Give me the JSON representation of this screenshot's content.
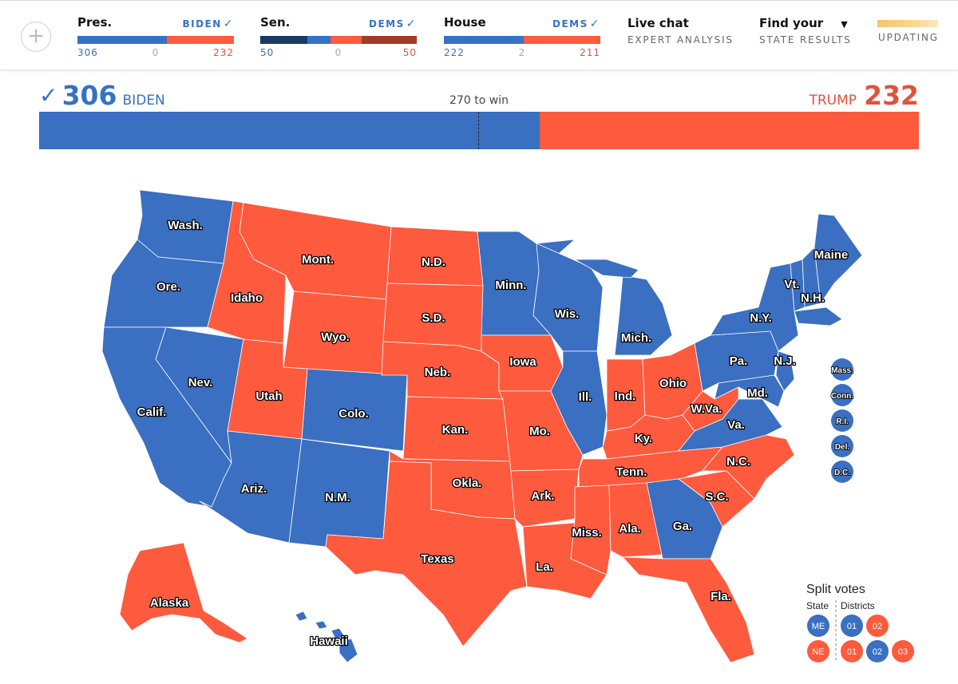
{
  "topbar": {
    "add_icon": "plus-icon",
    "races": [
      {
        "label": "Pres.",
        "winner": "BIDEN",
        "dem": "306",
        "mid": "0",
        "rep": "232",
        "segments": [
          {
            "color": "#3572c4",
            "share": 0.569
          },
          {
            "color": "#fd5a3e",
            "share": 0.431
          }
        ]
      },
      {
        "label": "Sen.",
        "winner": "DEMS",
        "dem": "50",
        "mid": "0",
        "rep": "50",
        "segments": [
          {
            "color": "#1b3a63",
            "share": 0.3
          },
          {
            "color": "#3572c4",
            "share": 0.15
          },
          {
            "color": "#fd5a3e",
            "share": 0.2
          },
          {
            "color": "#a33a2a",
            "share": 0.35
          }
        ]
      },
      {
        "label": "House",
        "winner": "DEMS",
        "dem": "222",
        "mid": "2",
        "rep": "211",
        "segments": [
          {
            "color": "#3572c4",
            "share": 0.51
          },
          {
            "color": "#fd5a3e",
            "share": 0.49
          }
        ]
      }
    ],
    "live_chat": {
      "title": "Live chat",
      "sub": "EXPERT ANALYSIS"
    },
    "find": {
      "title": "Find your",
      "sub": "STATE RESULTS"
    },
    "updating": "UPDATING"
  },
  "electoral": {
    "dem_votes": "306",
    "dem_name": "BIDEN",
    "rep_votes": "232",
    "rep_name": "TRUMP",
    "threshold": "270 to win",
    "dem_share": 0.5688,
    "rep_share": 0.4312
  },
  "colors": {
    "dem": "#3a6fc1",
    "rep": "#fd5a3e"
  },
  "map": {
    "states": [
      {
        "name": "Wash.",
        "winner": "dem"
      },
      {
        "name": "Ore.",
        "winner": "dem"
      },
      {
        "name": "Calif.",
        "winner": "dem"
      },
      {
        "name": "Nev.",
        "winner": "dem"
      },
      {
        "name": "Idaho",
        "winner": "rep"
      },
      {
        "name": "Mont.",
        "winner": "rep"
      },
      {
        "name": "Wyo.",
        "winner": "rep"
      },
      {
        "name": "Utah",
        "winner": "rep"
      },
      {
        "name": "Colo.",
        "winner": "dem"
      },
      {
        "name": "Ariz.",
        "winner": "dem"
      },
      {
        "name": "N.M.",
        "winner": "dem"
      },
      {
        "name": "N.D.",
        "winner": "rep"
      },
      {
        "name": "S.D.",
        "winner": "rep"
      },
      {
        "name": "Neb.",
        "winner": "rep"
      },
      {
        "name": "Kan.",
        "winner": "rep"
      },
      {
        "name": "Okla.",
        "winner": "rep"
      },
      {
        "name": "Texas",
        "winner": "rep"
      },
      {
        "name": "Minn.",
        "winner": "dem"
      },
      {
        "name": "Iowa",
        "winner": "rep"
      },
      {
        "name": "Mo.",
        "winner": "rep"
      },
      {
        "name": "Ark.",
        "winner": "rep"
      },
      {
        "name": "La.",
        "winner": "rep"
      },
      {
        "name": "Wis.",
        "winner": "dem"
      },
      {
        "name": "Ill.",
        "winner": "dem"
      },
      {
        "name": "Mich.",
        "winner": "dem"
      },
      {
        "name": "Ind.",
        "winner": "rep"
      },
      {
        "name": "Ohio",
        "winner": "rep"
      },
      {
        "name": "Ky.",
        "winner": "rep"
      },
      {
        "name": "Tenn.",
        "winner": "rep"
      },
      {
        "name": "Miss.",
        "winner": "rep"
      },
      {
        "name": "Ala.",
        "winner": "rep"
      },
      {
        "name": "Ga.",
        "winner": "dem"
      },
      {
        "name": "Fla.",
        "winner": "rep"
      },
      {
        "name": "S.C.",
        "winner": "rep"
      },
      {
        "name": "N.C.",
        "winner": "rep"
      },
      {
        "name": "Va.",
        "winner": "dem"
      },
      {
        "name": "W.Va.",
        "winner": "rep"
      },
      {
        "name": "Pa.",
        "winner": "dem"
      },
      {
        "name": "N.Y.",
        "winner": "dem"
      },
      {
        "name": "Vt.",
        "winner": "dem"
      },
      {
        "name": "N.H.",
        "winner": "dem"
      },
      {
        "name": "Maine",
        "winner": "dem"
      },
      {
        "name": "N.J.",
        "winner": "dem"
      },
      {
        "name": "Md.",
        "winner": "dem"
      },
      {
        "name": "Alaska",
        "winner": "rep"
      },
      {
        "name": "Hawaii",
        "winner": "dem"
      }
    ],
    "small_states": [
      {
        "name": "Mass.",
        "winner": "dem"
      },
      {
        "name": "Conn.",
        "winner": "dem"
      },
      {
        "name": "R.I.",
        "winner": "dem"
      },
      {
        "name": "Del.",
        "winner": "dem"
      },
      {
        "name": "D.C.",
        "winner": "dem"
      }
    ],
    "split": {
      "title": "Split votes",
      "state_label": "State",
      "districts_label": "Districts",
      "rows": [
        {
          "state": "ME",
          "state_winner": "dem",
          "districts": [
            {
              "label": "01",
              "winner": "dem"
            },
            {
              "label": "02",
              "winner": "rep"
            }
          ]
        },
        {
          "state": "NE",
          "state_winner": "rep",
          "districts": [
            {
              "label": "01",
              "winner": "rep"
            },
            {
              "label": "02",
              "winner": "dem"
            },
            {
              "label": "03",
              "winner": "rep"
            }
          ]
        }
      ]
    }
  }
}
